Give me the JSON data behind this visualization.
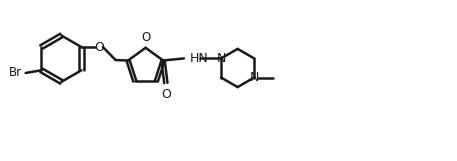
{
  "bg_color": "#ffffff",
  "line_color": "#1a1a1a",
  "line_width": 1.8,
  "font_size": 9,
  "figsize": [
    4.57,
    1.61
  ],
  "dpi": 100,
  "xlim": [
    -2.5,
    4.2
  ],
  "ylim": [
    -0.85,
    1.25
  ]
}
